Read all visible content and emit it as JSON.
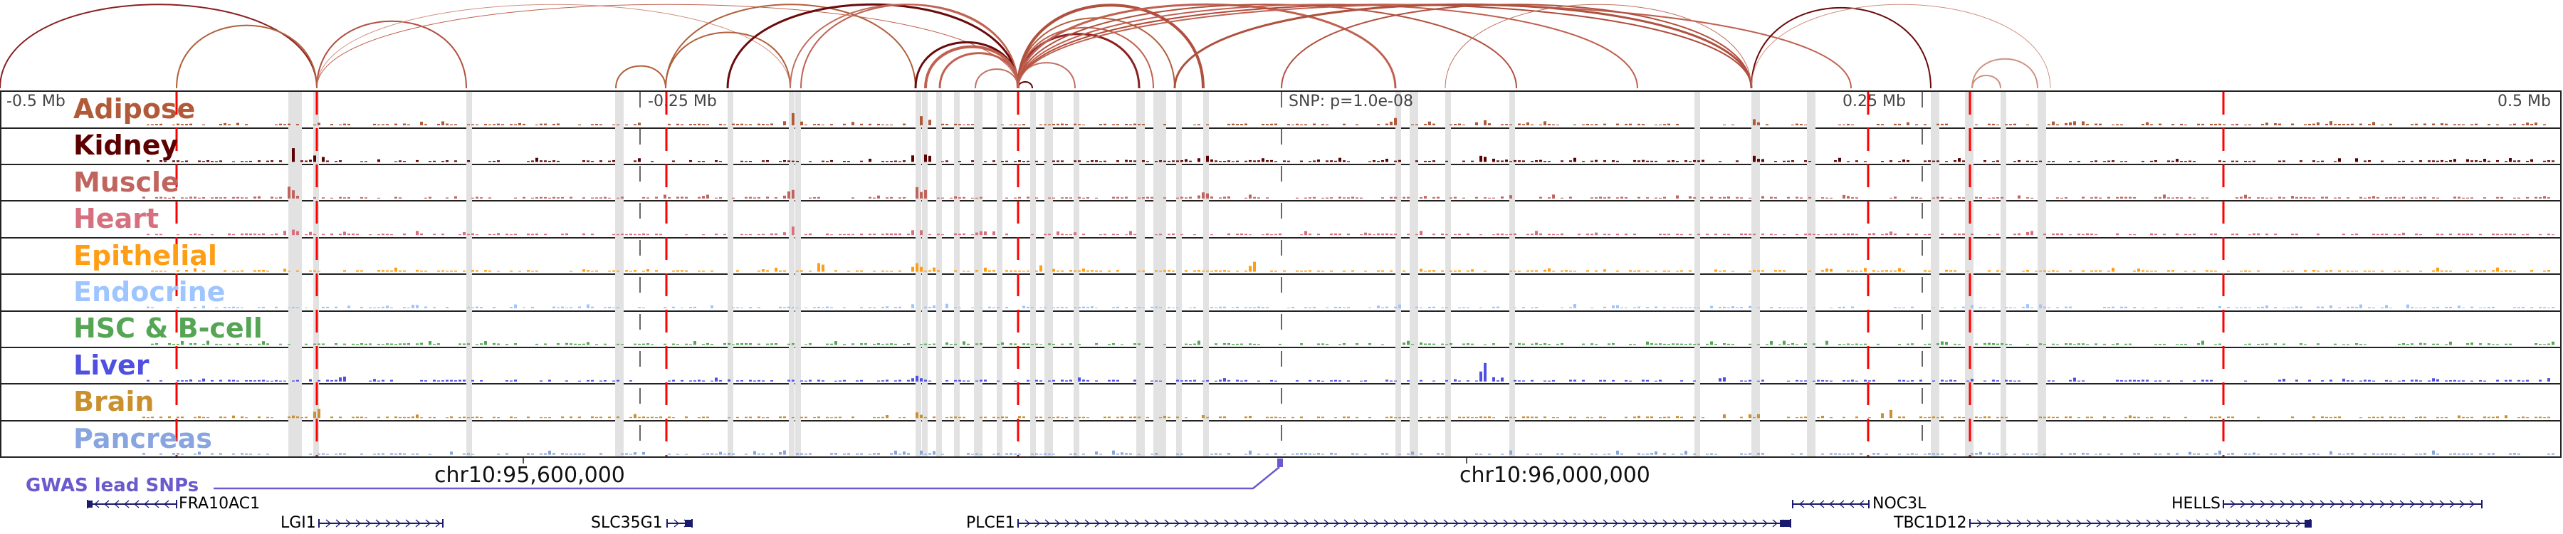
{
  "ticks": [
    "-0.5 Mb",
    "-0.25 Mb",
    "SNP: p=1.0e-08",
    "0.25 Mb",
    "0.5 Mb"
  ],
  "tracks": [
    {
      "name": "Adipose",
      "color": "#b05a3a"
    },
    {
      "name": "Kidney",
      "color": "#5c0000"
    },
    {
      "name": "Muscle",
      "color": "#c0645e"
    },
    {
      "name": "Heart",
      "color": "#d6707e"
    },
    {
      "name": "Epithelial",
      "color": "#ff9e14"
    },
    {
      "name": "Endocrine",
      "color": "#9ec5ff"
    },
    {
      "name": "HSC & B-cell",
      "color": "#55a555"
    },
    {
      "name": "Liver",
      "color": "#5050e0"
    },
    {
      "name": "Brain",
      "color": "#c8902e"
    },
    {
      "name": "Pancreas",
      "color": "#88a5e0"
    }
  ],
  "coordinates": [
    "chr10:95,600,000",
    "chr10:96,000,000"
  ],
  "gwas": {
    "label": "GWAS lead SNPs",
    "color": "#6a5acd"
  },
  "genes": [
    {
      "name": "FRA10AC1",
      "strand": "-"
    },
    {
      "name": "LGI1",
      "strand": "+"
    },
    {
      "name": "SLC35G1",
      "strand": "+"
    },
    {
      "name": "PLCE1",
      "strand": "+"
    },
    {
      "name": "NOC3L",
      "strand": "-"
    },
    {
      "name": "HELLS",
      "strand": "+"
    },
    {
      "name": "TBC1D12",
      "strand": "+"
    }
  ],
  "colors": {
    "highlight_line": "#ff0000",
    "gene": "#1a1a6e",
    "arc": "#b0503e"
  }
}
